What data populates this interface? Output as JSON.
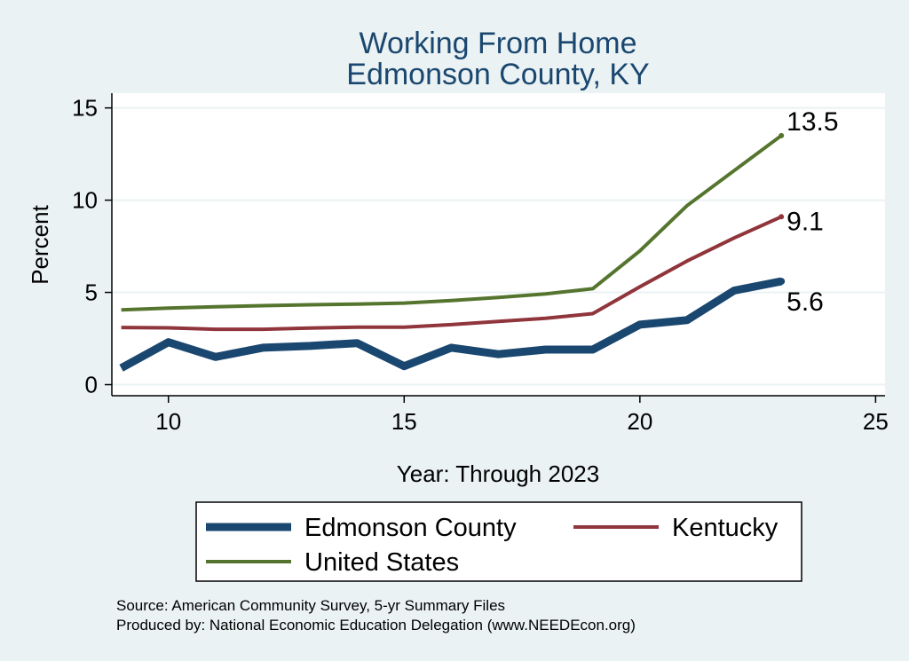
{
  "chart_data": {
    "type": "line",
    "title": [
      "Working From Home",
      "Edmonson County, KY"
    ],
    "xlabel": "Year: Through 2023",
    "ylabel": "Percent",
    "xlim": [
      8.8,
      25.2
    ],
    "ylim": [
      -0.6,
      15.8
    ],
    "xticks": [
      10,
      15,
      20,
      25
    ],
    "yticks": [
      0,
      5,
      10,
      15
    ],
    "grid": true,
    "legend_position": "bottom",
    "x": [
      9,
      10,
      11,
      12,
      13,
      14,
      15,
      16,
      17,
      18,
      19,
      20,
      21,
      22,
      23
    ],
    "series": [
      {
        "name": "Edmonson County",
        "color": "#1a476f",
        "width": 9,
        "values": [
          0.9,
          2.3,
          1.5,
          2.0,
          2.1,
          2.25,
          1.0,
          2.0,
          1.65,
          1.9,
          1.9,
          3.25,
          3.5,
          5.1,
          5.6
        ],
        "end_label": "5.6"
      },
      {
        "name": "Kentucky",
        "color": "#90353b",
        "width": 4,
        "values": [
          3.1,
          3.08,
          3.0,
          3.0,
          3.07,
          3.12,
          3.12,
          3.25,
          3.43,
          3.6,
          3.85,
          5.3,
          6.7,
          7.95,
          9.1
        ],
        "end_label": "9.1"
      },
      {
        "name": "United States",
        "color": "#55752f",
        "width": 4,
        "values": [
          4.05,
          4.15,
          4.22,
          4.28,
          4.33,
          4.37,
          4.42,
          4.56,
          4.73,
          4.92,
          5.2,
          7.25,
          9.7,
          11.6,
          13.5
        ],
        "end_label": "13.5"
      }
    ]
  },
  "source": {
    "line1": "Source: American Community Survey, 5-yr Summary Files",
    "line2": "Produced by: National Economic Education Delegation (www.NEEDEcon.org)"
  }
}
